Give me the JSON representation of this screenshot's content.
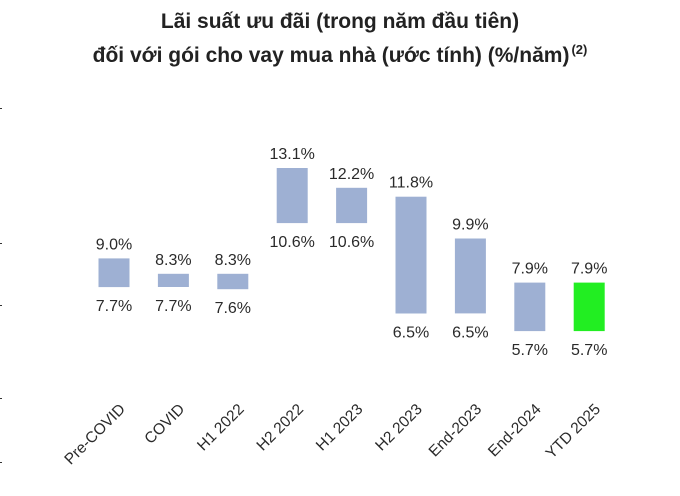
{
  "title": {
    "line1": "Lãi suất ưu đãi (trong năm đầu tiên)",
    "line2": "đối với gói cho vay mua nhà (ước tính) (%/năm)",
    "footnote": "(2)"
  },
  "colors": {
    "bar": "#9eb0d3",
    "highlight": "#22ee22"
  },
  "chart_data": {
    "type": "bar",
    "subtype": "floating-range",
    "categories": [
      "Pre-COVID",
      "COVID",
      "H1 2022",
      "H2 2022",
      "H1 2023",
      "H2 2023",
      "End-2023",
      "End-2024",
      "YTD 2025"
    ],
    "high": [
      9.0,
      8.3,
      8.3,
      13.1,
      12.2,
      11.8,
      9.9,
      7.9,
      7.9
    ],
    "low": [
      7.7,
      7.7,
      7.6,
      10.6,
      10.6,
      6.5,
      6.5,
      5.7,
      5.7
    ],
    "high_labels": [
      "9.0%",
      "8.3%",
      "8.3%",
      "13.1%",
      "12.2%",
      "11.8%",
      "9.9%",
      "7.9%",
      "7.9%"
    ],
    "low_labels": [
      "7.7%",
      "7.7%",
      "7.6%",
      "10.6%",
      "10.6%",
      "6.5%",
      "6.5%",
      "5.7%",
      "5.7%"
    ],
    "highlight_index": 8,
    "grid": false,
    "legend": "none"
  }
}
